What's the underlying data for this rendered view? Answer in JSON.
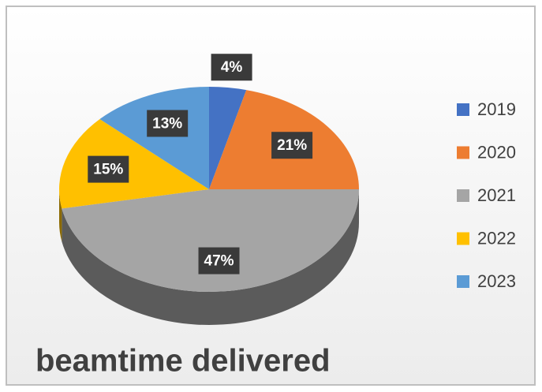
{
  "chart_data": {
    "type": "pie",
    "title": "beamtime delivered",
    "categories": [
      "2019",
      "2020",
      "2021",
      "2022",
      "2023"
    ],
    "values": [
      4,
      21,
      47,
      15,
      13
    ],
    "value_labels": [
      "4%",
      "21%",
      "47%",
      "15%",
      "13%"
    ],
    "colors": [
      "#4472c4",
      "#ed7d31",
      "#a5a5a5",
      "#ffc000",
      "#5b9bd5"
    ],
    "legend": "right"
  }
}
